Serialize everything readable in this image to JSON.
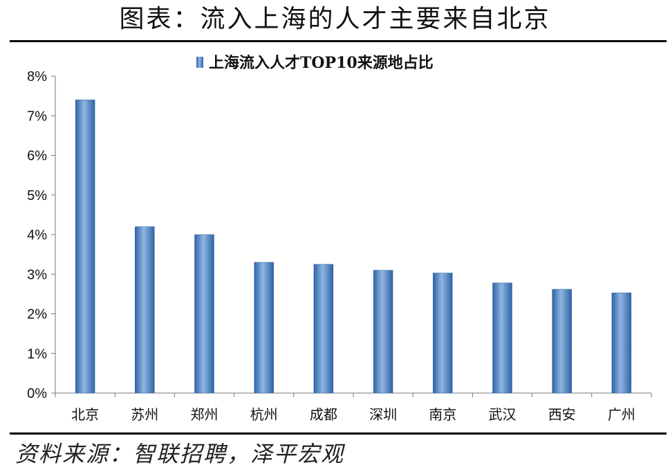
{
  "header": {
    "title": "图表：流入上海的人才主要来自北京"
  },
  "footer": {
    "source": "资料来源：智联招聘，泽平宏观"
  },
  "chart_data": {
    "type": "bar",
    "title": "",
    "legend": {
      "position": "top",
      "entries": [
        "上海流入人才TOP10来源地占比"
      ]
    },
    "xlabel": "",
    "ylabel": "",
    "categories": [
      "北京",
      "苏州",
      "郑州",
      "杭州",
      "成都",
      "深圳",
      "南京",
      "武汉",
      "西安",
      "广州"
    ],
    "series": [
      {
        "name": "上海流入人才TOP10来源地占比",
        "values": [
          7.4,
          4.2,
          4.0,
          3.3,
          3.25,
          3.1,
          3.03,
          2.78,
          2.62,
          2.53
        ]
      }
    ],
    "ylim": [
      0,
      8
    ],
    "yticks": [
      "0%",
      "1%",
      "2%",
      "3%",
      "4%",
      "5%",
      "6%",
      "7%",
      "8%"
    ],
    "grid": false,
    "bar_color": "#3f78be",
    "bar_highlight": "#8fb6e2"
  }
}
